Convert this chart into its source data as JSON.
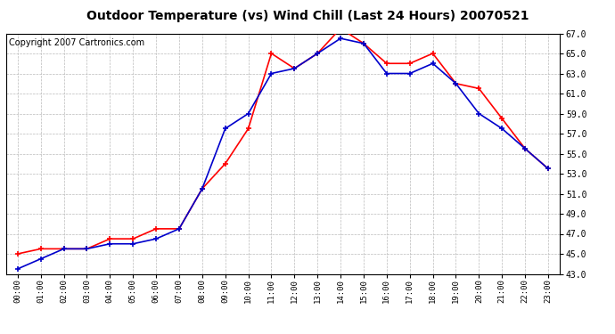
{
  "title": "Outdoor Temperature (vs) Wind Chill (Last 24 Hours) 20070521",
  "copyright": "Copyright 2007 Cartronics.com",
  "hours": [
    "00:00",
    "01:00",
    "02:00",
    "03:00",
    "04:00",
    "05:00",
    "06:00",
    "07:00",
    "08:00",
    "09:00",
    "10:00",
    "11:00",
    "12:00",
    "13:00",
    "14:00",
    "15:00",
    "16:00",
    "17:00",
    "18:00",
    "19:00",
    "20:00",
    "21:00",
    "22:00",
    "23:00"
  ],
  "temp": [
    45.0,
    45.5,
    45.5,
    45.5,
    46.5,
    46.5,
    47.5,
    47.5,
    51.5,
    54.0,
    57.5,
    65.0,
    63.5,
    65.0,
    67.5,
    66.0,
    64.0,
    64.0,
    65.0,
    62.0,
    61.5,
    58.5,
    55.5,
    53.5
  ],
  "windchill": [
    43.5,
    44.5,
    45.5,
    45.5,
    46.0,
    46.0,
    46.5,
    47.5,
    51.5,
    57.5,
    59.0,
    63.0,
    63.5,
    65.0,
    66.5,
    66.0,
    63.0,
    63.0,
    64.0,
    62.0,
    59.0,
    57.5,
    55.5,
    53.5
  ],
  "temp_color": "#FF0000",
  "windchill_color": "#0000CC",
  "bg_color": "#FFFFFF",
  "plot_bg_color": "#FFFFFF",
  "grid_color": "#BBBBBB",
  "ylim": [
    43.0,
    67.0
  ],
  "ytick_min": 43.0,
  "ytick_max": 67.0,
  "ytick_step": 2.0,
  "title_fontsize": 10,
  "copyright_fontsize": 7,
  "figwidth": 6.9,
  "figheight": 3.75,
  "dpi": 100
}
